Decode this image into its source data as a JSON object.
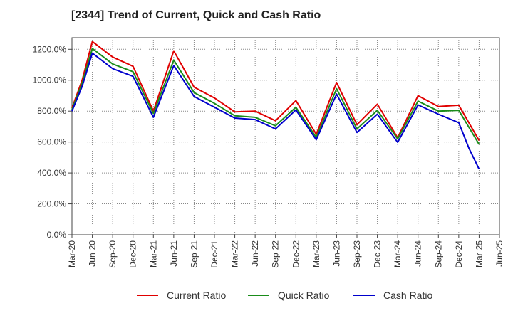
{
  "chart_data": {
    "type": "line",
    "title": "[2344]  Trend of Current, Quick and Cash Ratio",
    "xlabel": "",
    "ylabel": "",
    "ylim": [
      0,
      1275
    ],
    "y_ticks": [
      0,
      200,
      400,
      600,
      800,
      1000,
      1200
    ],
    "y_tick_labels": [
      "0.0%",
      "200.0%",
      "400.0%",
      "600.0%",
      "800.0%",
      "1000.0%",
      "1200.0%"
    ],
    "x_tick_labels": [
      "Mar-20",
      "Jun-20",
      "Sep-20",
      "Dec-20",
      "Mar-21",
      "Jun-21",
      "Sep-21",
      "Dec-21",
      "Mar-22",
      "Jun-22",
      "Sep-22",
      "Dec-22",
      "Mar-23",
      "Jun-23",
      "Sep-23",
      "Dec-23",
      "Mar-24",
      "Jun-24",
      "Sep-24",
      "Dec-24",
      "Mar-25",
      "Jun-25"
    ],
    "grid": true,
    "legend_position": "bottom",
    "series": [
      {
        "name": "Current Ratio",
        "color": "#e00000",
        "x": [
          0,
          0.5,
          1,
          2,
          3,
          4,
          5,
          6,
          7,
          8,
          9,
          10,
          11,
          12,
          13,
          14,
          15,
          16,
          17,
          18,
          19,
          20
        ],
        "values": [
          820,
          1000,
          1250,
          1150,
          1090,
          800,
          1190,
          955,
          885,
          795,
          800,
          738,
          868,
          650,
          985,
          712,
          845,
          628,
          900,
          830,
          838,
          610
        ]
      },
      {
        "name": "Quick Ratio",
        "color": "#1a8c1a",
        "x": [
          0,
          0.5,
          1,
          2,
          3,
          4,
          5,
          6,
          7,
          8,
          9,
          10,
          11,
          12,
          13,
          14,
          15,
          16,
          17,
          18,
          19,
          20
        ],
        "values": [
          810,
          980,
          1205,
          1105,
          1055,
          785,
          1130,
          920,
          850,
          770,
          760,
          705,
          825,
          630,
          945,
          685,
          805,
          620,
          865,
          800,
          805,
          585
        ]
      },
      {
        "name": "Cash Ratio",
        "color": "#0000cc",
        "x": [
          0,
          0.5,
          1,
          2,
          3,
          4,
          5,
          6,
          7,
          8,
          9,
          10,
          11,
          12,
          13,
          14,
          15,
          16,
          17,
          18,
          19,
          19.5,
          20
        ],
        "values": [
          800,
          960,
          1175,
          1075,
          1025,
          760,
          1095,
          895,
          825,
          755,
          745,
          685,
          808,
          615,
          910,
          662,
          780,
          598,
          840,
          780,
          725,
          560,
          425
        ]
      }
    ]
  }
}
